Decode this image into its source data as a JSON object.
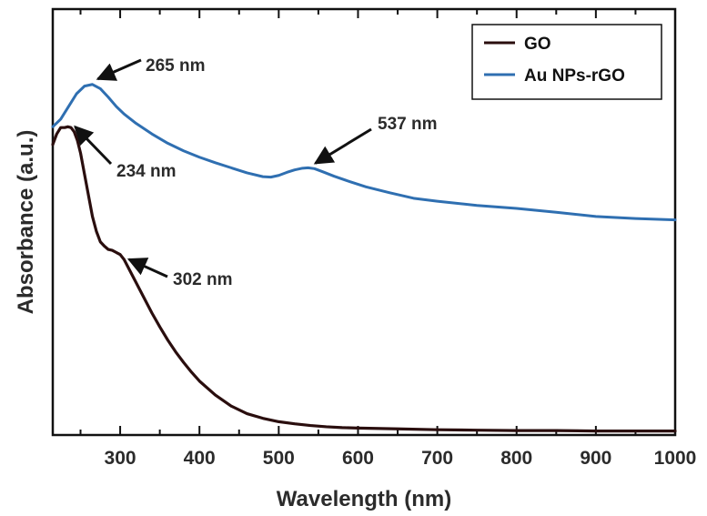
{
  "chart_data": {
    "type": "line",
    "title": "",
    "xlabel": "Wavelength (nm)",
    "ylabel": "Absorbance (a.u.)",
    "xlim": [
      215,
      1000
    ],
    "ylim": [
      0,
      1
    ],
    "x_ticks": [
      300,
      400,
      500,
      600,
      700,
      800,
      900,
      1000
    ],
    "x_tick_labels": [
      "300",
      "400",
      "500",
      "600",
      "700",
      "800",
      "900",
      "1000"
    ],
    "y_tick_labels_shown": false,
    "grid": false,
    "legend_position": "top-right",
    "series": [
      {
        "name": "GO",
        "color": "#2a0e0e",
        "x": [
          215,
          220,
          225,
          230,
          234,
          238,
          242,
          246,
          250,
          255,
          260,
          265,
          270,
          275,
          280,
          285,
          290,
          295,
          300,
          305,
          310,
          315,
          320,
          330,
          340,
          350,
          360,
          370,
          380,
          390,
          400,
          420,
          440,
          460,
          480,
          500,
          520,
          540,
          560,
          580,
          600,
          650,
          700,
          750,
          800,
          850,
          900,
          950,
          1000
        ],
        "y": [
          0.68,
          0.705,
          0.72,
          0.72,
          0.722,
          0.72,
          0.71,
          0.69,
          0.66,
          0.61,
          0.56,
          0.51,
          0.475,
          0.45,
          0.44,
          0.432,
          0.43,
          0.425,
          0.42,
          0.408,
          0.39,
          0.372,
          0.354,
          0.318,
          0.282,
          0.249,
          0.218,
          0.19,
          0.165,
          0.142,
          0.121,
          0.088,
          0.062,
          0.044,
          0.033,
          0.025,
          0.02,
          0.016,
          0.013,
          0.011,
          0.01,
          0.008,
          0.006,
          0.005,
          0.004,
          0.004,
          0.003,
          0.003,
          0.003
        ]
      },
      {
        "name": "Au NPs-rGO",
        "color": "#2f6fb1",
        "x": [
          215,
          225,
          235,
          245,
          255,
          265,
          275,
          285,
          295,
          305,
          320,
          340,
          360,
          380,
          400,
          420,
          440,
          460,
          480,
          490,
          500,
          510,
          520,
          530,
          537,
          545,
          555,
          570,
          590,
          610,
          640,
          670,
          700,
          750,
          800,
          850,
          900,
          950,
          1000
        ],
        "y": [
          0.722,
          0.74,
          0.77,
          0.8,
          0.818,
          0.822,
          0.812,
          0.792,
          0.77,
          0.752,
          0.73,
          0.705,
          0.683,
          0.665,
          0.65,
          0.637,
          0.625,
          0.613,
          0.604,
          0.603,
          0.607,
          0.614,
          0.62,
          0.624,
          0.625,
          0.623,
          0.616,
          0.605,
          0.592,
          0.58,
          0.566,
          0.553,
          0.546,
          0.536,
          0.529,
          0.52,
          0.51,
          0.505,
          0.502
        ]
      }
    ],
    "annotations": [
      {
        "text": "265 nm",
        "series": "Au NPs-rGO",
        "x": 265
      },
      {
        "text": "537 nm",
        "series": "Au NPs-rGO",
        "x": 537
      },
      {
        "text": "234 nm",
        "series": "GO",
        "x": 234
      },
      {
        "text": "302 nm",
        "series": "GO",
        "x": 302
      }
    ]
  }
}
